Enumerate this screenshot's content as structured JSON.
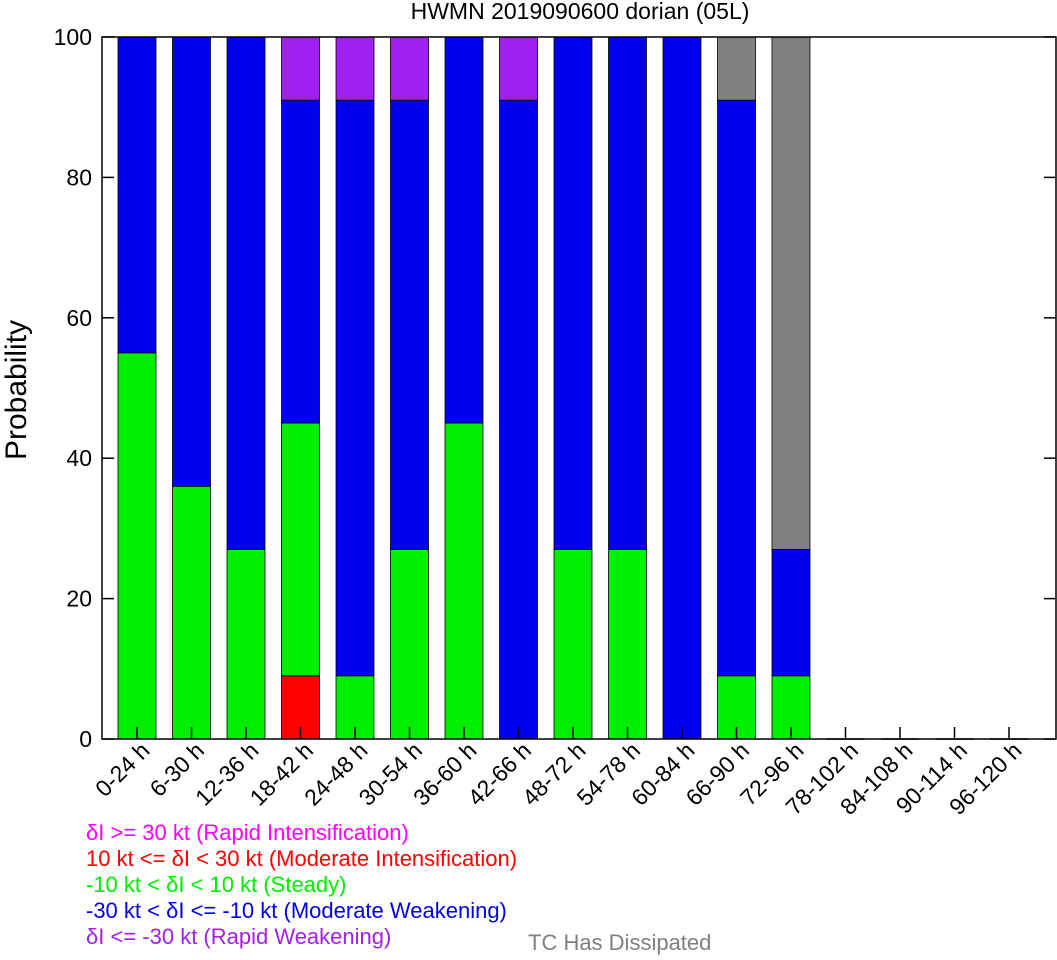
{
  "chart_data": {
    "type": "bar",
    "stacked": true,
    "title": "HWMN 2019090600 dorian (05L)",
    "xlabel": "",
    "ylabel": "Probability",
    "ylim": [
      0,
      100
    ],
    "yticks": [
      0,
      20,
      40,
      60,
      80,
      100
    ],
    "grid": false,
    "categories": [
      "0-24 h",
      "6-30 h",
      "12-36 h",
      "18-42 h",
      "24-48 h",
      "30-54 h",
      "36-60 h",
      "42-66 h",
      "48-72 h",
      "54-78 h",
      "60-84 h",
      "66-90 h",
      "72-96 h",
      "78-102 h",
      "84-108 h",
      "90-114 h",
      "96-120 h"
    ],
    "series": [
      {
        "key": "mi",
        "color": "#ff0000",
        "values": [
          0,
          0,
          0,
          9,
          0,
          0,
          0,
          0,
          0,
          0,
          0,
          0,
          0,
          0,
          0,
          0,
          0
        ]
      },
      {
        "key": "st",
        "color": "#00ee00",
        "values": [
          55,
          36,
          27,
          36,
          9,
          27,
          45,
          0,
          27,
          27,
          0,
          9,
          9,
          0,
          0,
          0,
          0
        ]
      },
      {
        "key": "mw",
        "color": "#0000ee",
        "values": [
          45,
          64,
          73,
          46,
          82,
          64,
          55,
          91,
          73,
          73,
          100,
          82,
          18,
          0,
          0,
          0,
          0
        ]
      },
      {
        "key": "rw",
        "color": "#a020f0",
        "values": [
          0,
          0,
          0,
          9,
          9,
          9,
          0,
          9,
          0,
          0,
          0,
          0,
          0,
          0,
          0,
          0,
          0
        ]
      },
      {
        "key": "dis",
        "color": "#808080",
        "values": [
          0,
          0,
          0,
          0,
          0,
          0,
          0,
          0,
          0,
          0,
          0,
          9,
          73,
          0,
          0,
          0,
          0
        ]
      }
    ],
    "legend": {
      "placement": "bottom-left",
      "entries": [
        {
          "text": "δI >= 30 kt (Rapid Intensification)",
          "color": "#ff00ff"
        },
        {
          "text": "10 kt <= δI < 30 kt (Moderate Intensification)",
          "color": "#ff0000"
        },
        {
          "text": "-10 kt < δI < 10 kt (Steady)",
          "color": "#00ee00"
        },
        {
          "text": "-30 kt < δI <= -10 kt (Moderate Weakening)",
          "color": "#0000ee"
        },
        {
          "text": "δI <= -30 kt (Rapid Weakening)",
          "color": "#a020f0"
        }
      ],
      "dissipated": {
        "text": "TC Has Dissipated",
        "color": "#808080"
      }
    }
  }
}
